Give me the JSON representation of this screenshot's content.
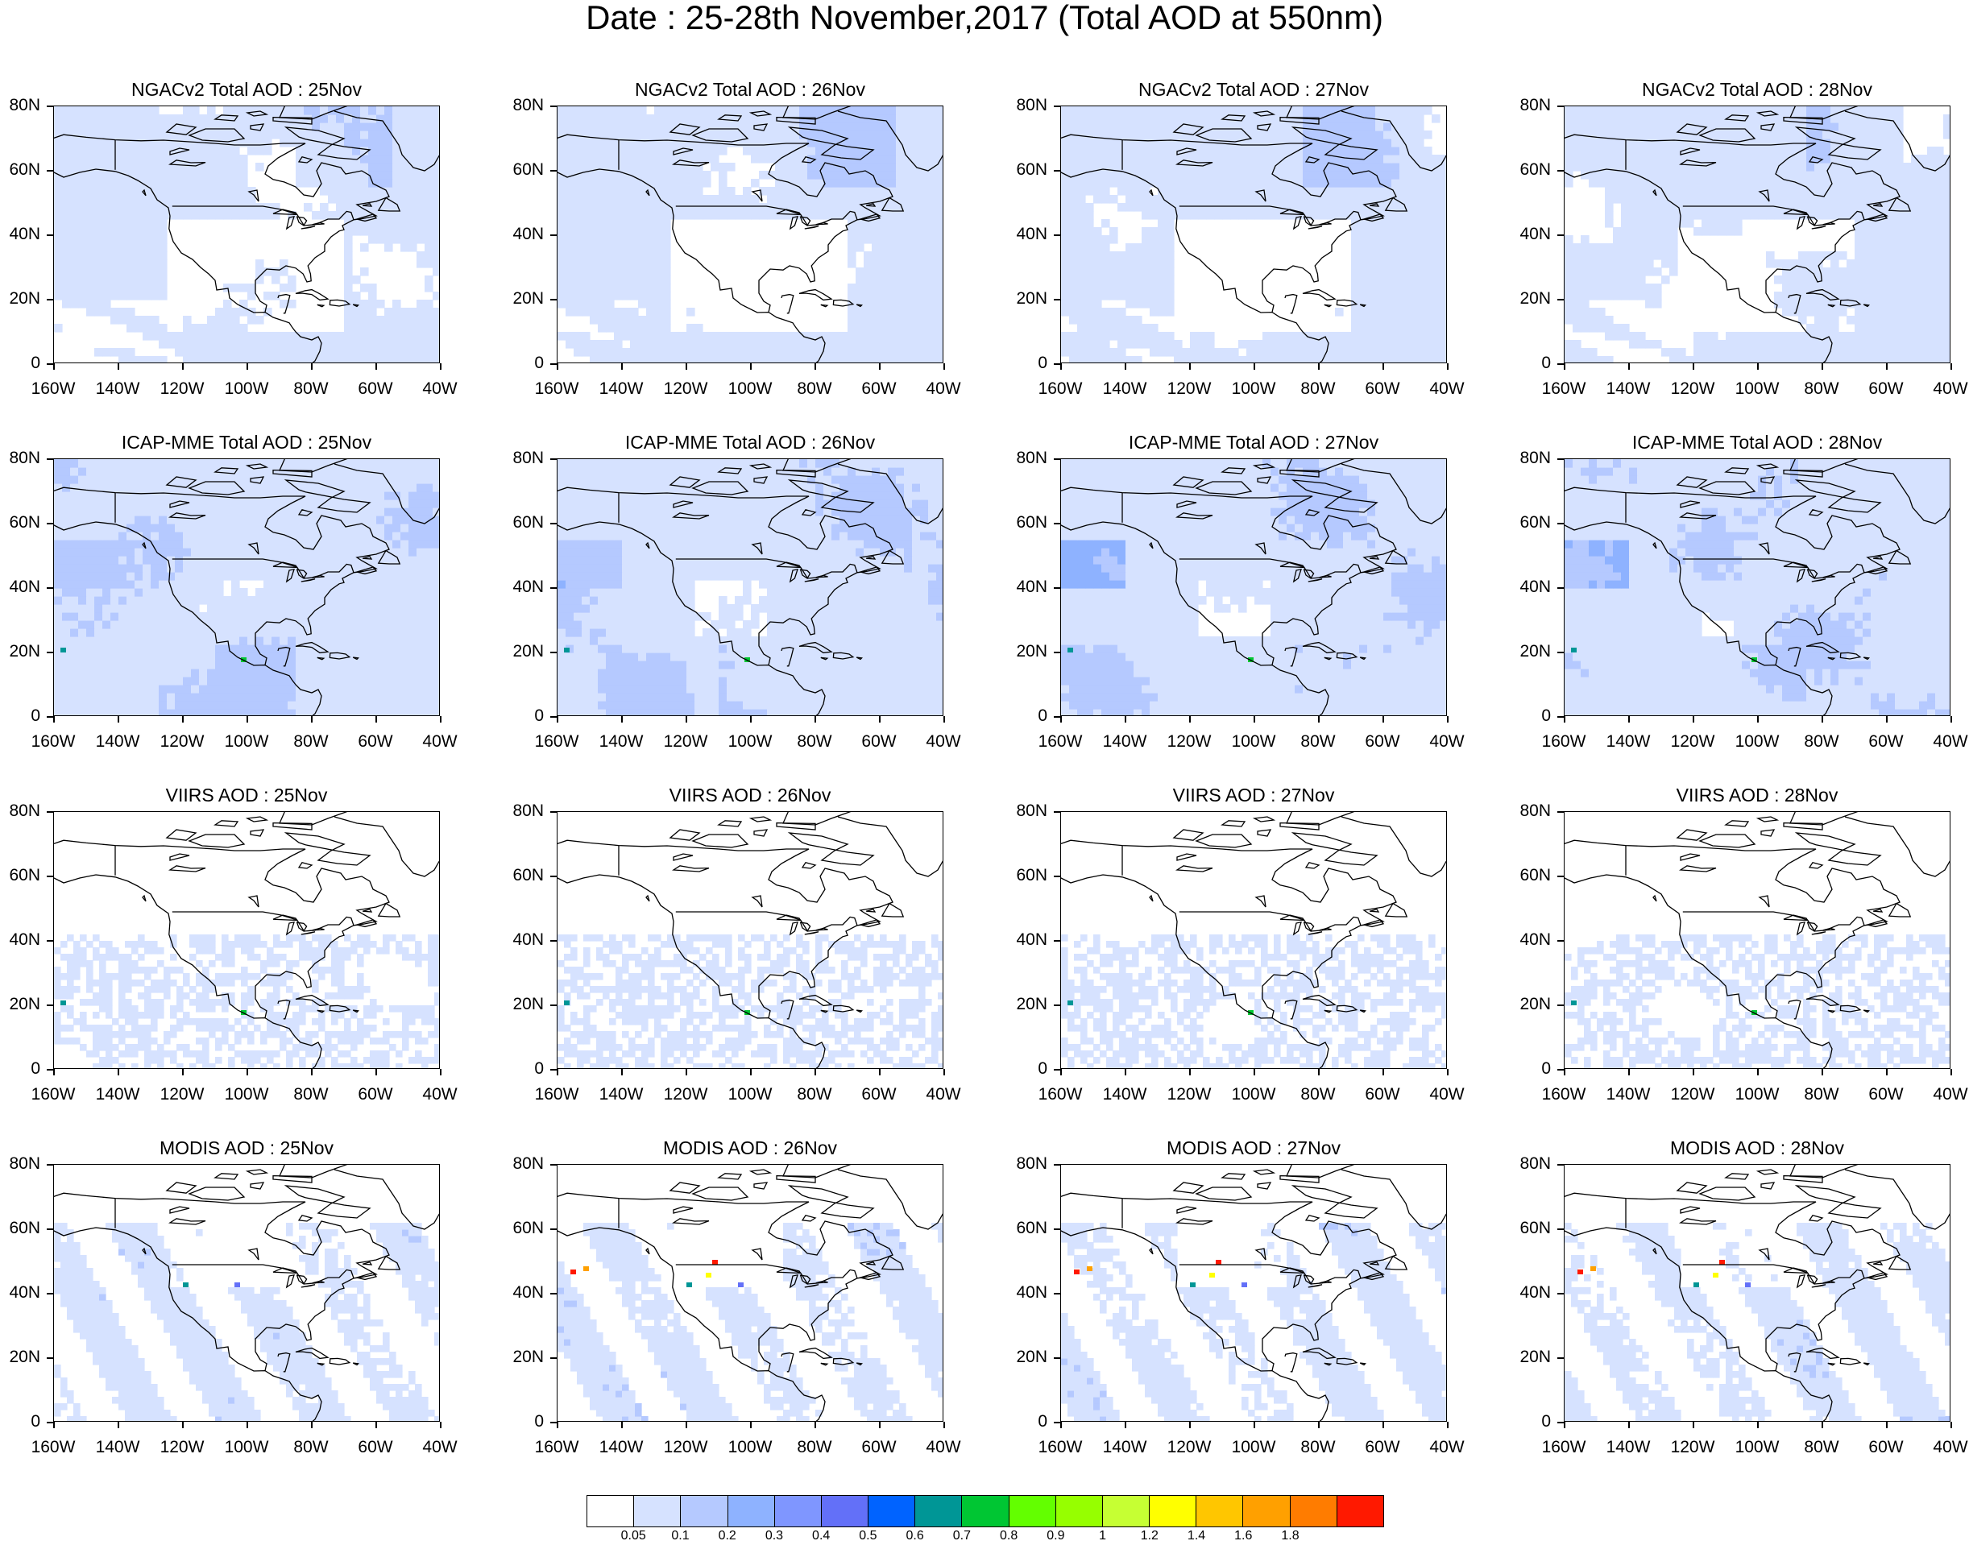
{
  "title": "Date : 25-28th November,2017 (Total AOD at 550nm)",
  "lat_labels": [
    "80N",
    "60N",
    "40N",
    "20N",
    "0"
  ],
  "lon_labels": [
    "160W",
    "140W",
    "120W",
    "100W",
    "80W",
    "60W",
    "40W"
  ],
  "rows": [
    {
      "product": "NGACv2",
      "titles": [
        "NGACv2 Total AOD : 25Nov",
        "NGACv2 Total AOD : 26Nov",
        "NGACv2 Total AOD : 27Nov",
        "NGACv2 Total AOD : 28Nov"
      ]
    },
    {
      "product": "ICAP-MME",
      "titles": [
        "ICAP-MME Total AOD : 25Nov",
        "ICAP-MME Total AOD : 26Nov",
        "ICAP-MME Total AOD : 27Nov",
        "ICAP-MME Total AOD : 28Nov"
      ]
    },
    {
      "product": "VIIRS",
      "titles": [
        "VIIRS AOD : 25Nov",
        "VIIRS AOD : 26Nov",
        "VIIRS AOD : 27Nov",
        "VIIRS AOD : 28Nov"
      ]
    },
    {
      "product": "MODIS",
      "titles": [
        "MODIS AOD : 25Nov",
        "MODIS AOD : 26Nov",
        "MODIS AOD : 27Nov",
        "MODIS AOD : 28Nov"
      ]
    }
  ],
  "colorbar": {
    "labels": [
      "0.05",
      "0.1",
      "0.2",
      "0.3",
      "0.4",
      "0.5",
      "0.6",
      "0.7",
      "0.8",
      "0.9",
      "1",
      "1.2",
      "1.4",
      "1.6",
      "1.8"
    ],
    "colors": [
      "#ffffff",
      "#d6e2ff",
      "#b5c9ff",
      "#8eb2ff",
      "#7f96ff",
      "#6370f8",
      "#0063ff",
      "#009696",
      "#00c633",
      "#63ff00",
      "#96ff00",
      "#c6ff33",
      "#ffff00",
      "#ffc600",
      "#ffa000",
      "#ff7c00",
      "#ff1900"
    ]
  }
}
